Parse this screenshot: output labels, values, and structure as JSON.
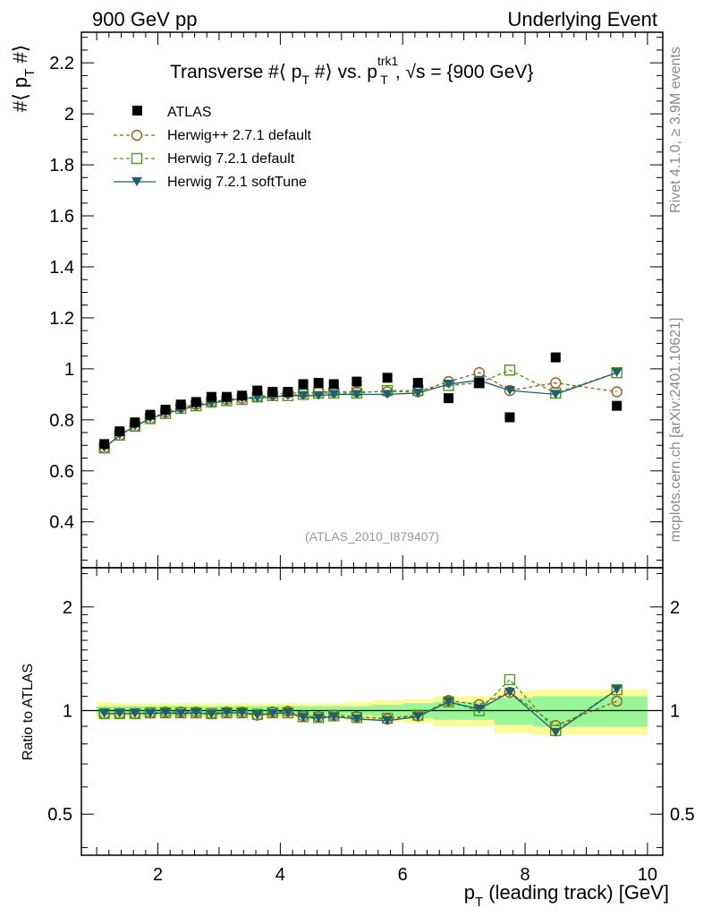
{
  "header": {
    "left": "900 GeV pp",
    "right": "Underlying Event"
  },
  "side_labels": {
    "rivet": "Rivet 4.1.0, ≥ 3.9M events",
    "mcplots": "mcplots.cern.ch [arXiv:2401.10621]"
  },
  "watermark": "(ATLAS_2010_I879407)",
  "title": {
    "main": "Transverse #⟨ p",
    "sub_T": "T",
    "mid": " #⟩ vs. p",
    "sup": "trk1",
    "sub2": "T",
    "tail": ", √s = {900 GeV}"
  },
  "ylabel_main": {
    "pre": "#⟨ p",
    "sub": "T",
    "post": " #⟩"
  },
  "ylabel_ratio": "Ratio to ATLAS",
  "xlabel": {
    "pre": "p",
    "sub": "T",
    "post": " (leading track) [GeV]"
  },
  "colors": {
    "atlas": "#000000",
    "herwigpp": "#a05a14",
    "herwig721": "#4a9a1c",
    "softtune": "#1f5f74",
    "band_inner": "#98f598",
    "band_outer": "#fbfb98"
  },
  "chart_data": [
    {
      "type": "scatter",
      "panel": "main",
      "xlim": [
        0.75,
        10.25
      ],
      "ylim": [
        0.22,
        2.32
      ],
      "yticks": [
        0.4,
        0.6,
        0.8,
        1,
        1.2,
        1.4,
        1.6,
        1.8,
        2,
        2.2
      ],
      "ytick_labels": [
        "0.4",
        "0.6",
        "0.8",
        "1",
        "1.2",
        "1.4",
        "1.6",
        "1.8",
        "2",
        "2.2"
      ],
      "x": [
        1.125,
        1.375,
        1.625,
        1.875,
        2.125,
        2.375,
        2.625,
        2.875,
        3.125,
        3.375,
        3.625,
        3.875,
        4.125,
        4.375,
        4.625,
        4.875,
        5.25,
        5.75,
        6.25,
        6.75,
        7.25,
        7.75,
        8.5,
        9.5
      ],
      "series": [
        {
          "name": "ATLAS",
          "key": "atlas",
          "marker": "square",
          "values": [
            0.705,
            0.755,
            0.79,
            0.82,
            0.84,
            0.86,
            0.87,
            0.89,
            0.89,
            0.895,
            0.915,
            0.91,
            0.91,
            0.94,
            0.945,
            0.94,
            0.95,
            0.965,
            0.945,
            0.885,
            0.945,
            0.81,
            1.045,
            0.855
          ]
        },
        {
          "name": "Herwig++ 2.7.1 default",
          "key": "herwigpp",
          "marker": "circle-open",
          "dashed": true,
          "values": [
            0.69,
            0.74,
            0.775,
            0.805,
            0.83,
            0.85,
            0.86,
            0.87,
            0.88,
            0.885,
            0.89,
            0.9,
            0.905,
            0.905,
            0.91,
            0.91,
            0.91,
            0.91,
            0.91,
            0.95,
            0.985,
            0.915,
            0.945,
            0.91
          ]
        },
        {
          "name": "Herwig 7.2.1 default",
          "key": "herwig721",
          "marker": "square-open",
          "dashed": true,
          "values": [
            0.69,
            0.74,
            0.775,
            0.805,
            0.825,
            0.845,
            0.855,
            0.87,
            0.875,
            0.88,
            0.89,
            0.895,
            0.895,
            0.9,
            0.905,
            0.905,
            0.905,
            0.915,
            0.915,
            0.935,
            0.945,
            0.995,
            0.905,
            0.985
          ]
        },
        {
          "name": "Herwig 7.2.1 softTune",
          "key": "softtune",
          "marker": "triangle-down",
          "values": [
            0.69,
            0.74,
            0.775,
            0.805,
            0.825,
            0.84,
            0.855,
            0.865,
            0.875,
            0.885,
            0.885,
            0.89,
            0.895,
            0.895,
            0.895,
            0.9,
            0.9,
            0.9,
            0.905,
            0.94,
            0.955,
            0.915,
            0.9,
            0.985
          ]
        }
      ]
    },
    {
      "type": "scatter",
      "panel": "ratio",
      "xlim": [
        0.75,
        10.25
      ],
      "yscale": "log",
      "ylim": [
        0.38,
        2.6
      ],
      "yticks": [
        0.5,
        1,
        2
      ],
      "ytick_labels": [
        "0.5",
        "1",
        "2"
      ],
      "xticks": [
        2,
        4,
        6,
        8,
        10
      ],
      "xtick_labels": [
        "2",
        "4",
        "6",
        "8",
        "10"
      ],
      "band_inner": [
        0.03,
        0.03,
        0.03,
        0.03,
        0.03,
        0.03,
        0.03,
        0.03,
        0.03,
        0.03,
        0.03,
        0.03,
        0.03,
        0.03,
        0.03,
        0.03,
        0.03,
        0.04,
        0.05,
        0.06,
        0.06,
        0.09,
        0.1,
        0.1
      ],
      "band_outer": [
        0.06,
        0.05,
        0.05,
        0.05,
        0.05,
        0.05,
        0.05,
        0.05,
        0.05,
        0.05,
        0.05,
        0.05,
        0.05,
        0.05,
        0.05,
        0.05,
        0.06,
        0.07,
        0.08,
        0.1,
        0.1,
        0.14,
        0.15,
        0.15
      ],
      "series": [
        {
          "name": "Herwig++ 2.7.1 default",
          "key": "herwigpp",
          "marker": "circle-open",
          "dashed": true,
          "values": [
            0.98,
            0.98,
            0.98,
            0.985,
            0.99,
            0.99,
            0.99,
            0.98,
            0.99,
            0.99,
            0.97,
            0.99,
            0.995,
            0.965,
            0.96,
            0.97,
            0.96,
            0.945,
            0.965,
            1.07,
            1.04,
            1.13,
            0.905,
            1.065
          ]
        },
        {
          "name": "Herwig 7.2.1 default",
          "key": "herwig721",
          "marker": "square-open",
          "dashed": true,
          "values": [
            0.98,
            0.98,
            0.98,
            0.985,
            0.985,
            0.985,
            0.985,
            0.98,
            0.985,
            0.985,
            0.975,
            0.985,
            0.985,
            0.96,
            0.955,
            0.965,
            0.955,
            0.95,
            0.97,
            1.06,
            1.0,
            1.23,
            0.875,
            1.15
          ]
        },
        {
          "name": "Herwig 7.2.1 softTune",
          "key": "softtune",
          "marker": "triangle-down",
          "values": [
            0.98,
            0.98,
            0.98,
            0.98,
            0.985,
            0.98,
            0.985,
            0.975,
            0.985,
            0.985,
            0.97,
            0.98,
            0.985,
            0.955,
            0.95,
            0.96,
            0.945,
            0.935,
            0.96,
            1.06,
            1.01,
            1.13,
            0.865,
            1.15
          ]
        }
      ]
    }
  ]
}
